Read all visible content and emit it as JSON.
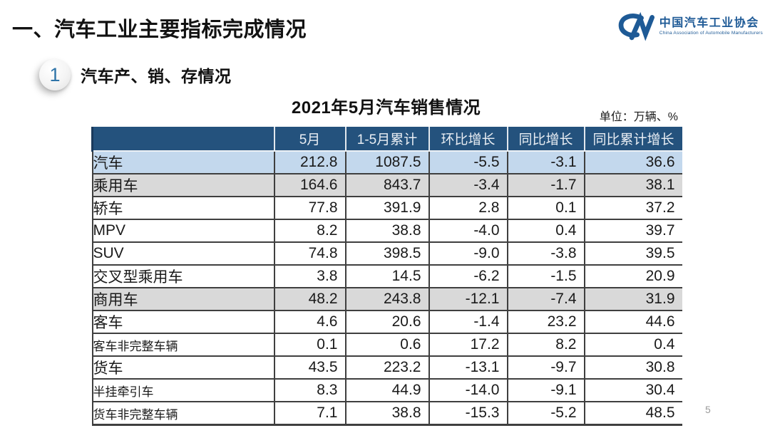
{
  "slide": {
    "title": "一、汽车工业主要指标完成情况",
    "page_number": "5"
  },
  "logo": {
    "name_cn": "中国汽车工业协会",
    "name_en": "China Association of Automobile Manufacturers",
    "color": "#1E5A96"
  },
  "section": {
    "number": "1",
    "title": "汽车产、销、存情况"
  },
  "table": {
    "title": "2021年5月汽车销售情况",
    "unit_label": "单位：万辆、%",
    "col_headers": [
      "5月",
      "1-5月累计",
      "环比增长",
      "同比增长",
      "同比累计增长"
    ],
    "rows": [
      {
        "label": "汽车",
        "indent": 0,
        "bg": "blue",
        "small": false,
        "values": [
          "212.8",
          "1087.5",
          "-5.5",
          "-3.1",
          "36.6"
        ]
      },
      {
        "label": "乘用车",
        "indent": 1,
        "bg": "gray",
        "small": false,
        "values": [
          "164.6",
          "843.7",
          "-3.4",
          "-1.7",
          "38.1"
        ]
      },
      {
        "label": "轿车",
        "indent": 3,
        "bg": "white",
        "small": false,
        "values": [
          "77.8",
          "391.9",
          "2.8",
          "0.1",
          "37.2"
        ]
      },
      {
        "label": "MPV",
        "indent": 3,
        "bg": "white",
        "small": false,
        "values": [
          "8.2",
          "38.8",
          "-4.0",
          "0.4",
          "39.7"
        ]
      },
      {
        "label": "SUV",
        "indent": 3,
        "bg": "white",
        "small": false,
        "values": [
          "74.8",
          "398.5",
          "-9.0",
          "-3.8",
          "39.5"
        ]
      },
      {
        "label": "交叉型乘用车",
        "indent": 3,
        "bg": "white",
        "small": false,
        "values": [
          "3.8",
          "14.5",
          "-6.2",
          "-1.5",
          "20.9"
        ]
      },
      {
        "label": "商用车",
        "indent": 1,
        "bg": "gray",
        "small": false,
        "values": [
          "48.2",
          "243.8",
          "-12.1",
          "-7.4",
          "31.9"
        ]
      },
      {
        "label": "客车",
        "indent": 2,
        "bg": "white",
        "small": false,
        "values": [
          "4.6",
          "20.6",
          "-1.4",
          "23.2",
          "44.6"
        ]
      },
      {
        "label": "客车非完整车辆",
        "indent": 4,
        "bg": "white",
        "small": true,
        "values": [
          "0.1",
          "0.6",
          "17.2",
          "8.2",
          "0.4"
        ]
      },
      {
        "label": "货车",
        "indent": 2,
        "bg": "white",
        "small": false,
        "values": [
          "43.5",
          "223.2",
          "-13.1",
          "-9.7",
          "30.8"
        ]
      },
      {
        "label": "半挂牵引车",
        "indent": 4,
        "bg": "white",
        "small": true,
        "values": [
          "8.3",
          "44.9",
          "-14.0",
          "-9.1",
          "30.4"
        ]
      },
      {
        "label": "货车非完整车辆",
        "indent": 4,
        "bg": "white",
        "small": true,
        "values": [
          "7.1",
          "38.8",
          "-15.3",
          "-5.2",
          "48.5"
        ]
      }
    ]
  },
  "colors": {
    "header_bg": "#24527D",
    "row_highlight_blue": "#C3D8ED",
    "row_highlight_gray": "#D9D9D9",
    "border": "#3F3F3F",
    "logo_blue": "#1E5A96"
  },
  "chart_data": {
    "type": "table",
    "title": "2021年5月汽车销售情况",
    "unit": "万辆、%",
    "columns": [
      "",
      "5月",
      "1-5月累计",
      "环比增长",
      "同比增长",
      "同比累计增长"
    ],
    "rows": [
      [
        "汽车",
        212.8,
        1087.5,
        -5.5,
        -3.1,
        36.6
      ],
      [
        "乘用车",
        164.6,
        843.7,
        -3.4,
        -1.7,
        38.1
      ],
      [
        "轿车",
        77.8,
        391.9,
        2.8,
        0.1,
        37.2
      ],
      [
        "MPV",
        8.2,
        38.8,
        -4.0,
        0.4,
        39.7
      ],
      [
        "SUV",
        74.8,
        398.5,
        -9.0,
        -3.8,
        39.5
      ],
      [
        "交叉型乘用车",
        3.8,
        14.5,
        -6.2,
        -1.5,
        20.9
      ],
      [
        "商用车",
        48.2,
        243.8,
        -12.1,
        -7.4,
        31.9
      ],
      [
        "客车",
        4.6,
        20.6,
        -1.4,
        23.2,
        44.6
      ],
      [
        "客车非完整车辆",
        0.1,
        0.6,
        17.2,
        8.2,
        0.4
      ],
      [
        "货车",
        43.5,
        223.2,
        -13.1,
        -9.7,
        30.8
      ],
      [
        "半挂牵引车",
        8.3,
        44.9,
        -14.0,
        -9.1,
        30.4
      ],
      [
        "货车非完整车辆",
        7.1,
        38.8,
        -15.3,
        -5.2,
        48.5
      ]
    ]
  }
}
